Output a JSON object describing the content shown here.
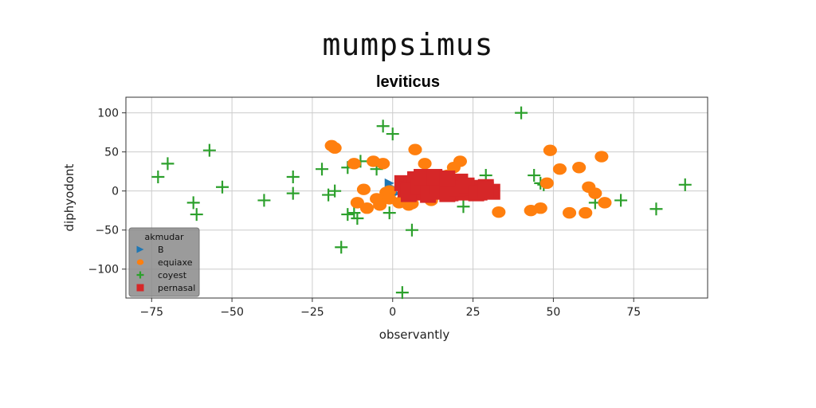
{
  "suptitle": "mumpsimus",
  "chart_data": {
    "type": "scatter",
    "title": "leviticus",
    "xlabel": "observantly",
    "ylabel": "diphyodont",
    "xlim": [
      -83,
      98
    ],
    "ylim": [
      -137,
      120
    ],
    "xticks": [
      -75,
      -50,
      -25,
      0,
      25,
      50,
      75
    ],
    "yticks": [
      100,
      50,
      0,
      -50,
      -100
    ],
    "xtick_labels": [
      "−75",
      "−50",
      "−25",
      "0",
      "25",
      "50",
      "75"
    ],
    "ytick_labels": [
      "100",
      "50",
      "0",
      "−50",
      "−100"
    ],
    "grid": true,
    "legend": {
      "title": "akmudar",
      "position": "lower-left"
    },
    "series": [
      {
        "name": "B",
        "marker": "triangle-right",
        "color": "#1f77b4",
        "x": [
          -1,
          1,
          0
        ],
        "y": [
          10,
          -3,
          4
        ]
      },
      {
        "name": "equiaxe",
        "marker": "circle",
        "color": "#ff7f0e",
        "x": [
          -19,
          -18,
          -12,
          -11,
          -9,
          -8,
          -6,
          -5,
          -4,
          -3,
          -2,
          -1,
          -4,
          -1,
          2,
          4,
          5,
          6,
          7,
          8,
          10,
          12,
          14,
          17,
          19,
          21,
          23,
          33,
          43,
          46,
          48,
          49,
          52,
          55,
          58,
          60,
          61,
          63,
          65,
          66
        ],
        "y": [
          58,
          55,
          35,
          -15,
          2,
          -22,
          38,
          -10,
          -18,
          35,
          -2,
          0,
          -12,
          -10,
          -15,
          -5,
          -18,
          -16,
          53,
          8,
          35,
          -12,
          -3,
          20,
          30,
          38,
          5,
          -27,
          -25,
          -22,
          10,
          52,
          28,
          -28,
          30,
          -28,
          5,
          -3,
          44,
          -15
        ]
      },
      {
        "name": "coyest",
        "marker": "plus",
        "color": "#2ca02c",
        "x": [
          -73,
          -70,
          -57,
          -62,
          -61,
          -53,
          -40,
          -31,
          -31,
          -22,
          -20,
          -18,
          -16,
          -14,
          -14,
          -12,
          -11,
          -10,
          -5,
          -3,
          -1,
          0,
          2,
          3,
          6,
          22,
          29,
          40,
          44,
          46,
          47,
          63,
          71,
          82,
          91
        ],
        "y": [
          18,
          35,
          52,
          -15,
          -30,
          5,
          -12,
          -3,
          18,
          28,
          -5,
          0,
          -72,
          30,
          -30,
          -28,
          -35,
          38,
          28,
          83,
          -28,
          73,
          -12,
          -130,
          -50,
          -20,
          20,
          100,
          20,
          10,
          8,
          -15,
          -12,
          -23,
          8
        ]
      },
      {
        "name": "pernasal",
        "marker": "square",
        "color": "#d62728",
        "x": [
          3,
          4,
          5,
          6,
          7,
          8,
          9,
          10,
          11,
          12,
          13,
          14,
          15,
          16,
          17,
          18,
          19,
          20,
          21,
          22,
          23,
          25,
          27,
          29,
          31,
          5,
          8,
          11,
          14,
          17,
          20,
          23,
          26,
          29,
          9,
          13,
          17
        ],
        "y": [
          10,
          2,
          -4,
          8,
          15,
          -2,
          6,
          12,
          -5,
          3,
          10,
          -1,
          8,
          14,
          2,
          -3,
          9,
          1,
          12,
          -2,
          6,
          4,
          -2,
          5,
          -1,
          0,
          5,
          0,
          6,
          -4,
          3,
          7,
          -3,
          2,
          18,
          18,
          16
        ]
      }
    ]
  }
}
